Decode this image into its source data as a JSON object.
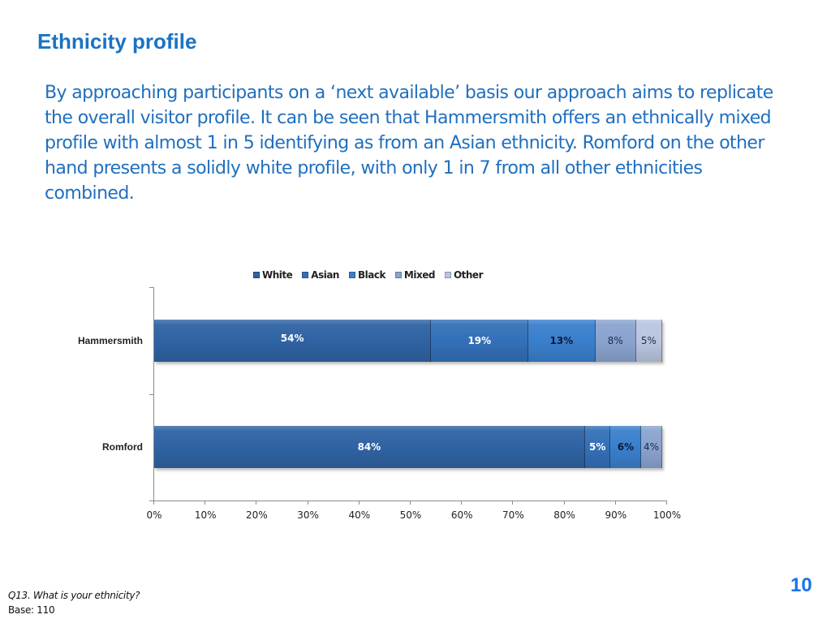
{
  "slide": {
    "title": "Ethnicity profile",
    "intro": "By approaching participants on a ‘next available’ basis our approach aims to replicate the overall visitor profile. It can be seen that Hammersmith offers an ethnically mixed profile with  almost 1 in 5 identifying as from an Asian ethnicity. Romford on the other hand presents a solidly white profile, with only 1 in 7 from all other ethnicities combined.",
    "page_number": "10",
    "footnote_question": "Q13. What is your ethnicity?",
    "footnote_base": "Base: 110"
  },
  "colors": {
    "White": "#2f63a3",
    "Asian": "#3470b8",
    "Black": "#3a7fcc",
    "Mixed": "#8aa4cf",
    "Other": "#b9c6e0"
  },
  "legend": [
    "White",
    "Asian",
    "Black",
    "Mixed",
    "Other"
  ],
  "x_ticks": [
    "0%",
    "10%",
    "20%",
    "30%",
    "40%",
    "50%",
    "60%",
    "70%",
    "80%",
    "90%",
    "100%"
  ],
  "chart_data": {
    "type": "bar",
    "orientation": "horizontal",
    "stacked": true,
    "title": "",
    "categories": [
      "Hammersmith",
      "Romford"
    ],
    "series": [
      {
        "name": "White",
        "values": [
          54,
          84
        ],
        "labels": [
          "54%",
          "84%"
        ]
      },
      {
        "name": "Asian",
        "values": [
          19,
          5
        ],
        "labels": [
          "19%",
          "5%"
        ]
      },
      {
        "name": "Black",
        "values": [
          13,
          6
        ],
        "labels": [
          "13%",
          "6%"
        ]
      },
      {
        "name": "Mixed",
        "values": [
          8,
          4
        ],
        "labels": [
          "8%",
          "4%"
        ]
      },
      {
        "name": "Other",
        "values": [
          5,
          0
        ],
        "labels": [
          "5%",
          ""
        ]
      }
    ],
    "xlabel": "",
    "ylabel": "",
    "xlim": [
      0,
      100
    ],
    "x_ticks": [
      "0%",
      "10%",
      "20%",
      "30%",
      "40%",
      "50%",
      "60%",
      "70%",
      "80%",
      "90%",
      "100%"
    ],
    "legend_position": "top",
    "grid": false
  }
}
